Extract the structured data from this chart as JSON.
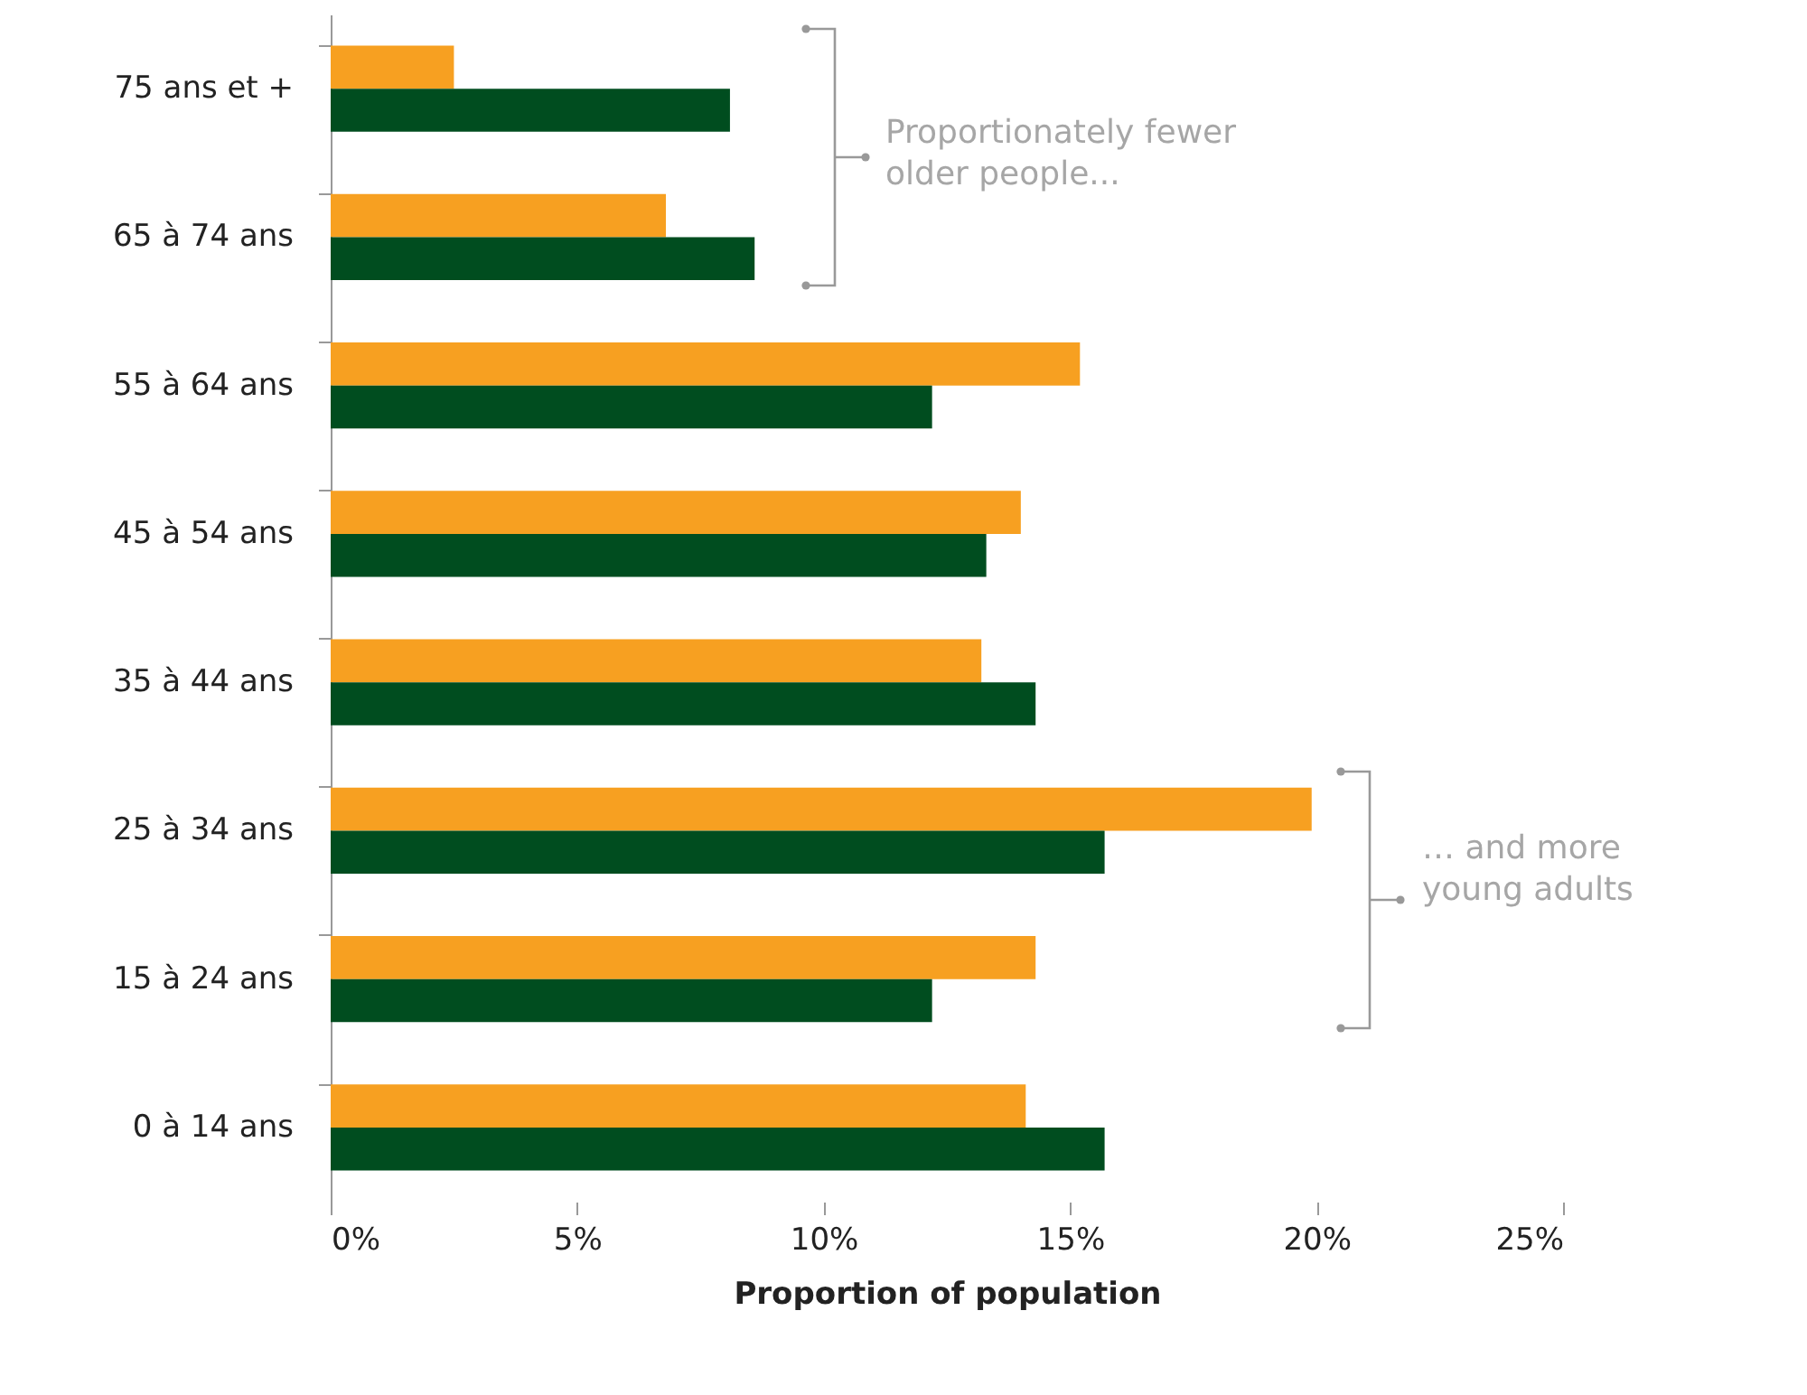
{
  "chart_data": {
    "type": "bar",
    "orientation": "horizontal",
    "xlabel": "Proportion of population",
    "categories": [
      "75 ans et +",
      "65 à 74 ans",
      "55 à 64 ans",
      "45 à 54 ans",
      "35 à 44 ans",
      "25 à 34 ans",
      "15 à 24 ans",
      "0 à 14 ans"
    ],
    "series": [
      {
        "color": "#f7a021",
        "values": [
          2.5,
          6.8,
          15.2,
          14.0,
          13.2,
          19.9,
          14.3,
          14.1
        ]
      },
      {
        "color": "#004d1f",
        "values": [
          8.1,
          8.6,
          12.2,
          13.3,
          14.3,
          15.7,
          12.2,
          15.7
        ]
      }
    ],
    "xlim": [
      0,
      25
    ],
    "xticks": [
      {
        "value": 0,
        "label": "0%"
      },
      {
        "value": 5,
        "label": "5%"
      },
      {
        "value": 10,
        "label": "10%"
      },
      {
        "value": 15,
        "label": "15%"
      },
      {
        "value": 20,
        "label": "20%"
      },
      {
        "value": 25,
        "label": "25%"
      }
    ],
    "grid": false,
    "annotations": [
      "Proportionately fewer older people...",
      "… and more young adults"
    ]
  }
}
